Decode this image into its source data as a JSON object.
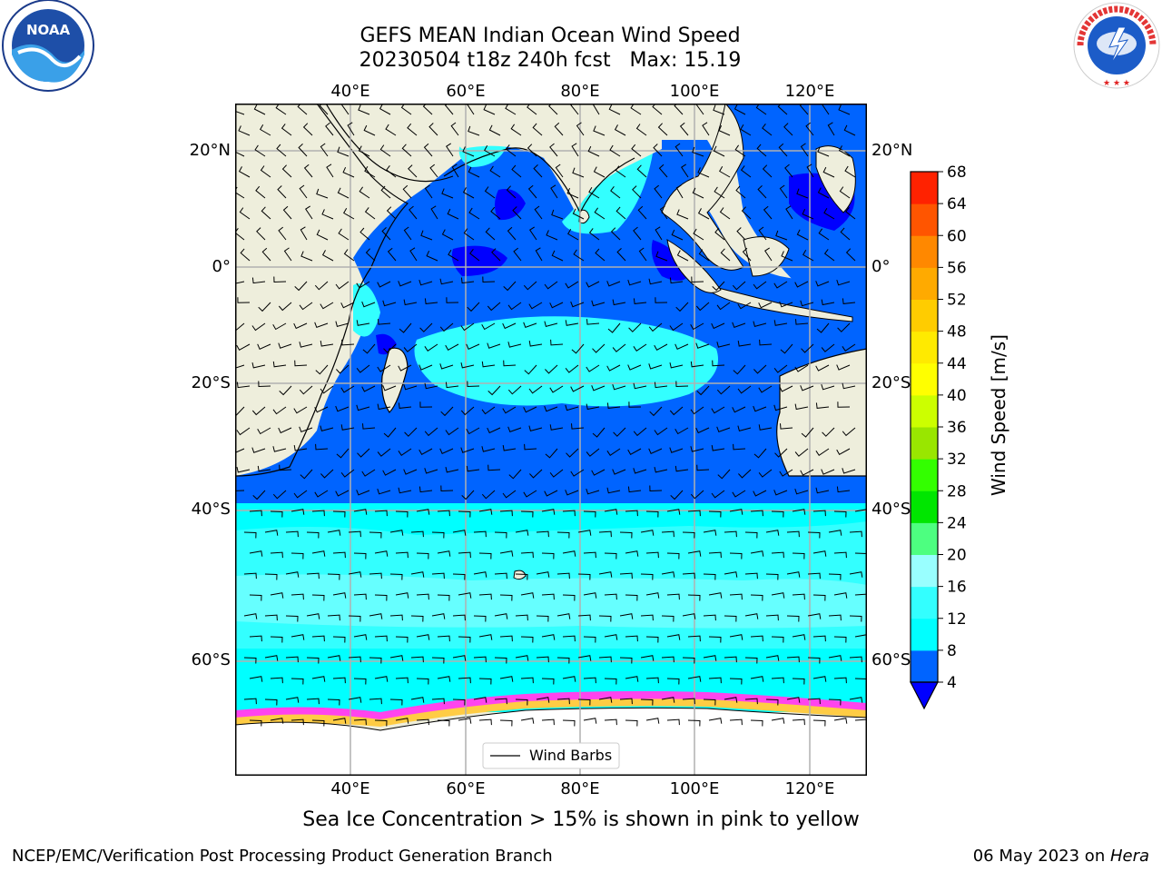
{
  "title": {
    "line1": "GEFS MEAN Indian Ocean Wind Speed",
    "line2": "20230504 t18z 240h fcst   Max: 15.19"
  },
  "logos": {
    "left": {
      "name": "noaa-logo",
      "text": "NOAA"
    },
    "right": {
      "name": "nws-logo",
      "text": "NATIONAL WEATHER SERVICE"
    }
  },
  "map": {
    "lon_ticks": [
      "40°E",
      "60°E",
      "80°E",
      "100°E",
      "120°E"
    ],
    "lat_ticks": [
      "20°N",
      "0°",
      "20°S",
      "40°S",
      "60°S"
    ],
    "legend_label": "Wind Barbs"
  },
  "colorbar": {
    "label": "Wind Speed [m/s]",
    "ticks": [
      "4",
      "8",
      "12",
      "16",
      "20",
      "24",
      "28",
      "32",
      "36",
      "40",
      "44",
      "48",
      "52",
      "56",
      "60",
      "64",
      "68"
    ],
    "colors": [
      "#0064ff",
      "#00ffff",
      "#33ffff",
      "#99ffff",
      "#4dff80",
      "#00e600",
      "#33ff00",
      "#99e600",
      "#ccff00",
      "#ffff00",
      "#ffea00",
      "#ffcc00",
      "#ffaa00",
      "#ff8800",
      "#ff5500",
      "#ff2200"
    ],
    "under_color": "#0000ff"
  },
  "chart_data": {
    "type": "heatmap",
    "title": "GEFS MEAN Indian Ocean Wind Speed",
    "subtitle": "20230504 t18z 240h fcst   Max: 15.19",
    "x_axis": [
      "40°E",
      "60°E",
      "80°E",
      "100°E",
      "120°E"
    ],
    "y_axis": [
      "20°N",
      "0°",
      "20°S",
      "40°S",
      "60°S"
    ],
    "colorbar_label": "Wind Speed [m/s]",
    "colorbar_range": [
      4,
      68
    ],
    "max_value": 15.19,
    "grid": true,
    "legend": "Wind Barbs"
  },
  "caption": "Sea Ice Concentration > 15% is shown in pink to yellow",
  "footer": {
    "left": "NCEP/EMC/Verification Post Processing Product Generation Branch",
    "right_date": "06 May 2023 on ",
    "right_host": "Hera"
  }
}
